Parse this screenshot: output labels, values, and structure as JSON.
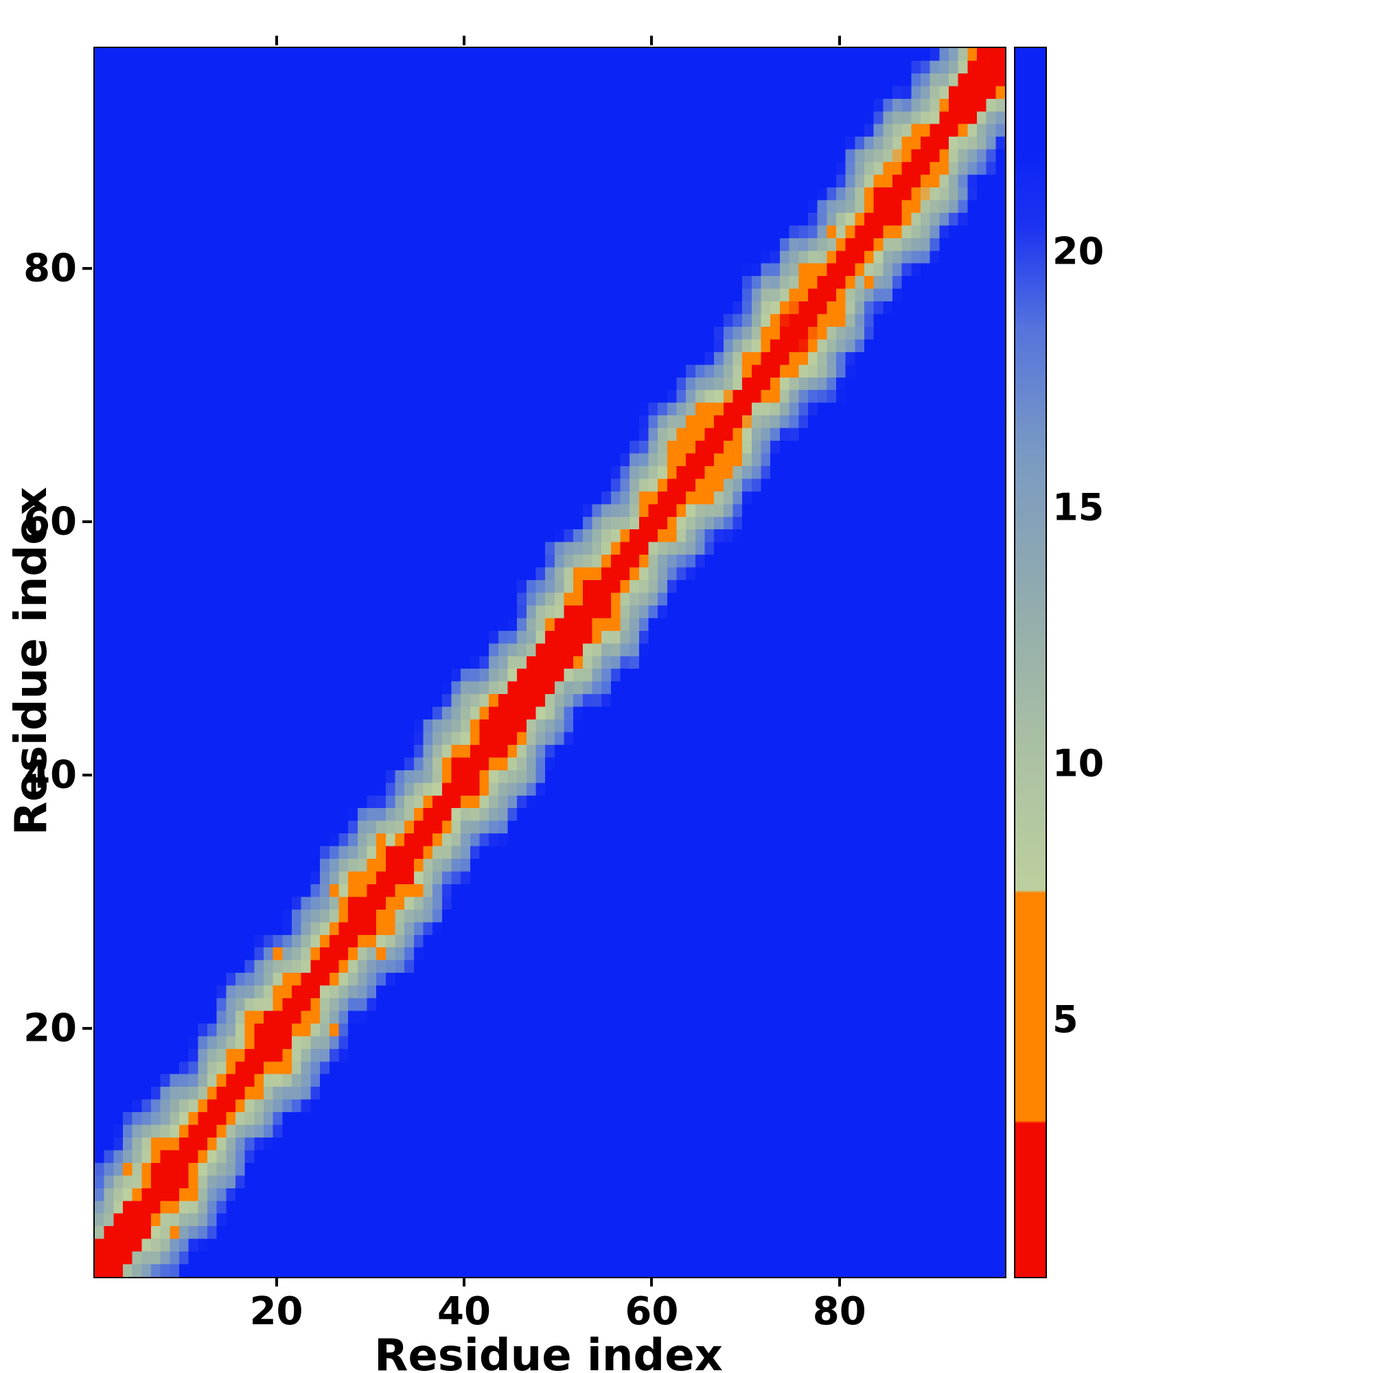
{
  "figure": {
    "background_color": "#ffffff",
    "plot_background_color": "#0b24f5"
  },
  "chart_data": {
    "type": "heatmap",
    "title": "",
    "xlabel": "Residue index",
    "ylabel": "Residue index",
    "n_residues": 97,
    "x_ticks": [
      20,
      40,
      60,
      80
    ],
    "y_ticks": [
      20,
      40,
      60,
      80
    ],
    "x_range": [
      1,
      97
    ],
    "y_range": [
      1,
      97
    ],
    "description": "Symmetric residue-residue distance map: red band along the diagonal (short distances), orange then pale green then slate blue fringes, saturated blue far from the diagonal (large distances). Orange hotspot cluster near residues 62-69 and scattered orange cells near (4,9), (20,26), (26,31), (76,80), (79,83).",
    "colorbar": {
      "ticks": [
        5,
        10,
        15,
        20
      ],
      "vmin": 0,
      "vmax": 24,
      "stops": [
        {
          "v": 0,
          "c": "#f20a00"
        },
        {
          "v": 3,
          "c": "#f20a00"
        },
        {
          "v": 3.05,
          "c": "#ff8400"
        },
        {
          "v": 7.5,
          "c": "#ff8400"
        },
        {
          "v": 7.55,
          "c": "#bccf9f"
        },
        {
          "v": 10,
          "c": "#adc2a2"
        },
        {
          "v": 13,
          "c": "#93adad"
        },
        {
          "v": 16,
          "c": "#7b9ac2"
        },
        {
          "v": 18.5,
          "c": "#5575dd"
        },
        {
          "v": 20.5,
          "c": "#1d33f2"
        },
        {
          "v": 22,
          "c": "#0b24f5"
        },
        {
          "v": 24,
          "c": "#0b24f5"
        }
      ]
    },
    "matrix_model": {
      "kind": "banded_distance_matrix",
      "base_step": 2.55,
      "wobble": [
        {
          "amp": 1.9,
          "freq": 0.28,
          "phase": 0.0
        },
        {
          "amp": 1.3,
          "freq": 0.9,
          "phase": 2.0
        }
      ],
      "cell_noise_amp": 0.9,
      "red_segments": [
        [
          1,
          6
        ],
        [
          44,
          53
        ],
        [
          92,
          97
        ]
      ],
      "hotspot_value": 5.0,
      "hotspots": [
        [
          4,
          9
        ],
        [
          20,
          26
        ],
        [
          26,
          31
        ],
        [
          62,
          65
        ],
        [
          62,
          66
        ],
        [
          63,
          66
        ],
        [
          63,
          67
        ],
        [
          64,
          67
        ],
        [
          64,
          68
        ],
        [
          65,
          68
        ],
        [
          65,
          69
        ],
        [
          66,
          69
        ],
        [
          64,
          66
        ],
        [
          76,
          80
        ],
        [
          79,
          83
        ]
      ]
    }
  }
}
